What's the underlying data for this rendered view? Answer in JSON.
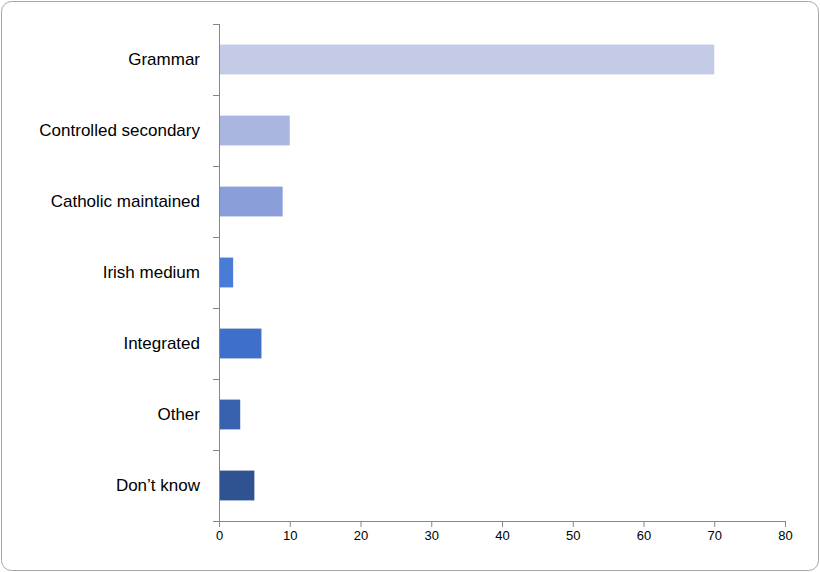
{
  "chart_data": {
    "type": "bar",
    "orientation": "horizontal",
    "categories": [
      "Grammar",
      "Controlled secondary",
      "Catholic maintained",
      "Irish medium",
      "Integrated",
      "Other",
      "Don’t know"
    ],
    "values": [
      70,
      10,
      9,
      2,
      6,
      3,
      5
    ],
    "colors": [
      "#c3cbe6",
      "#a9b6e0",
      "#8a9fda",
      "#4a7bd6",
      "#3f6fc8",
      "#3861b0",
      "#2f5291"
    ],
    "xlim": [
      0,
      80
    ],
    "xticks": [
      0,
      10,
      20,
      30,
      40,
      50,
      60,
      70,
      80
    ],
    "grid": false
  }
}
